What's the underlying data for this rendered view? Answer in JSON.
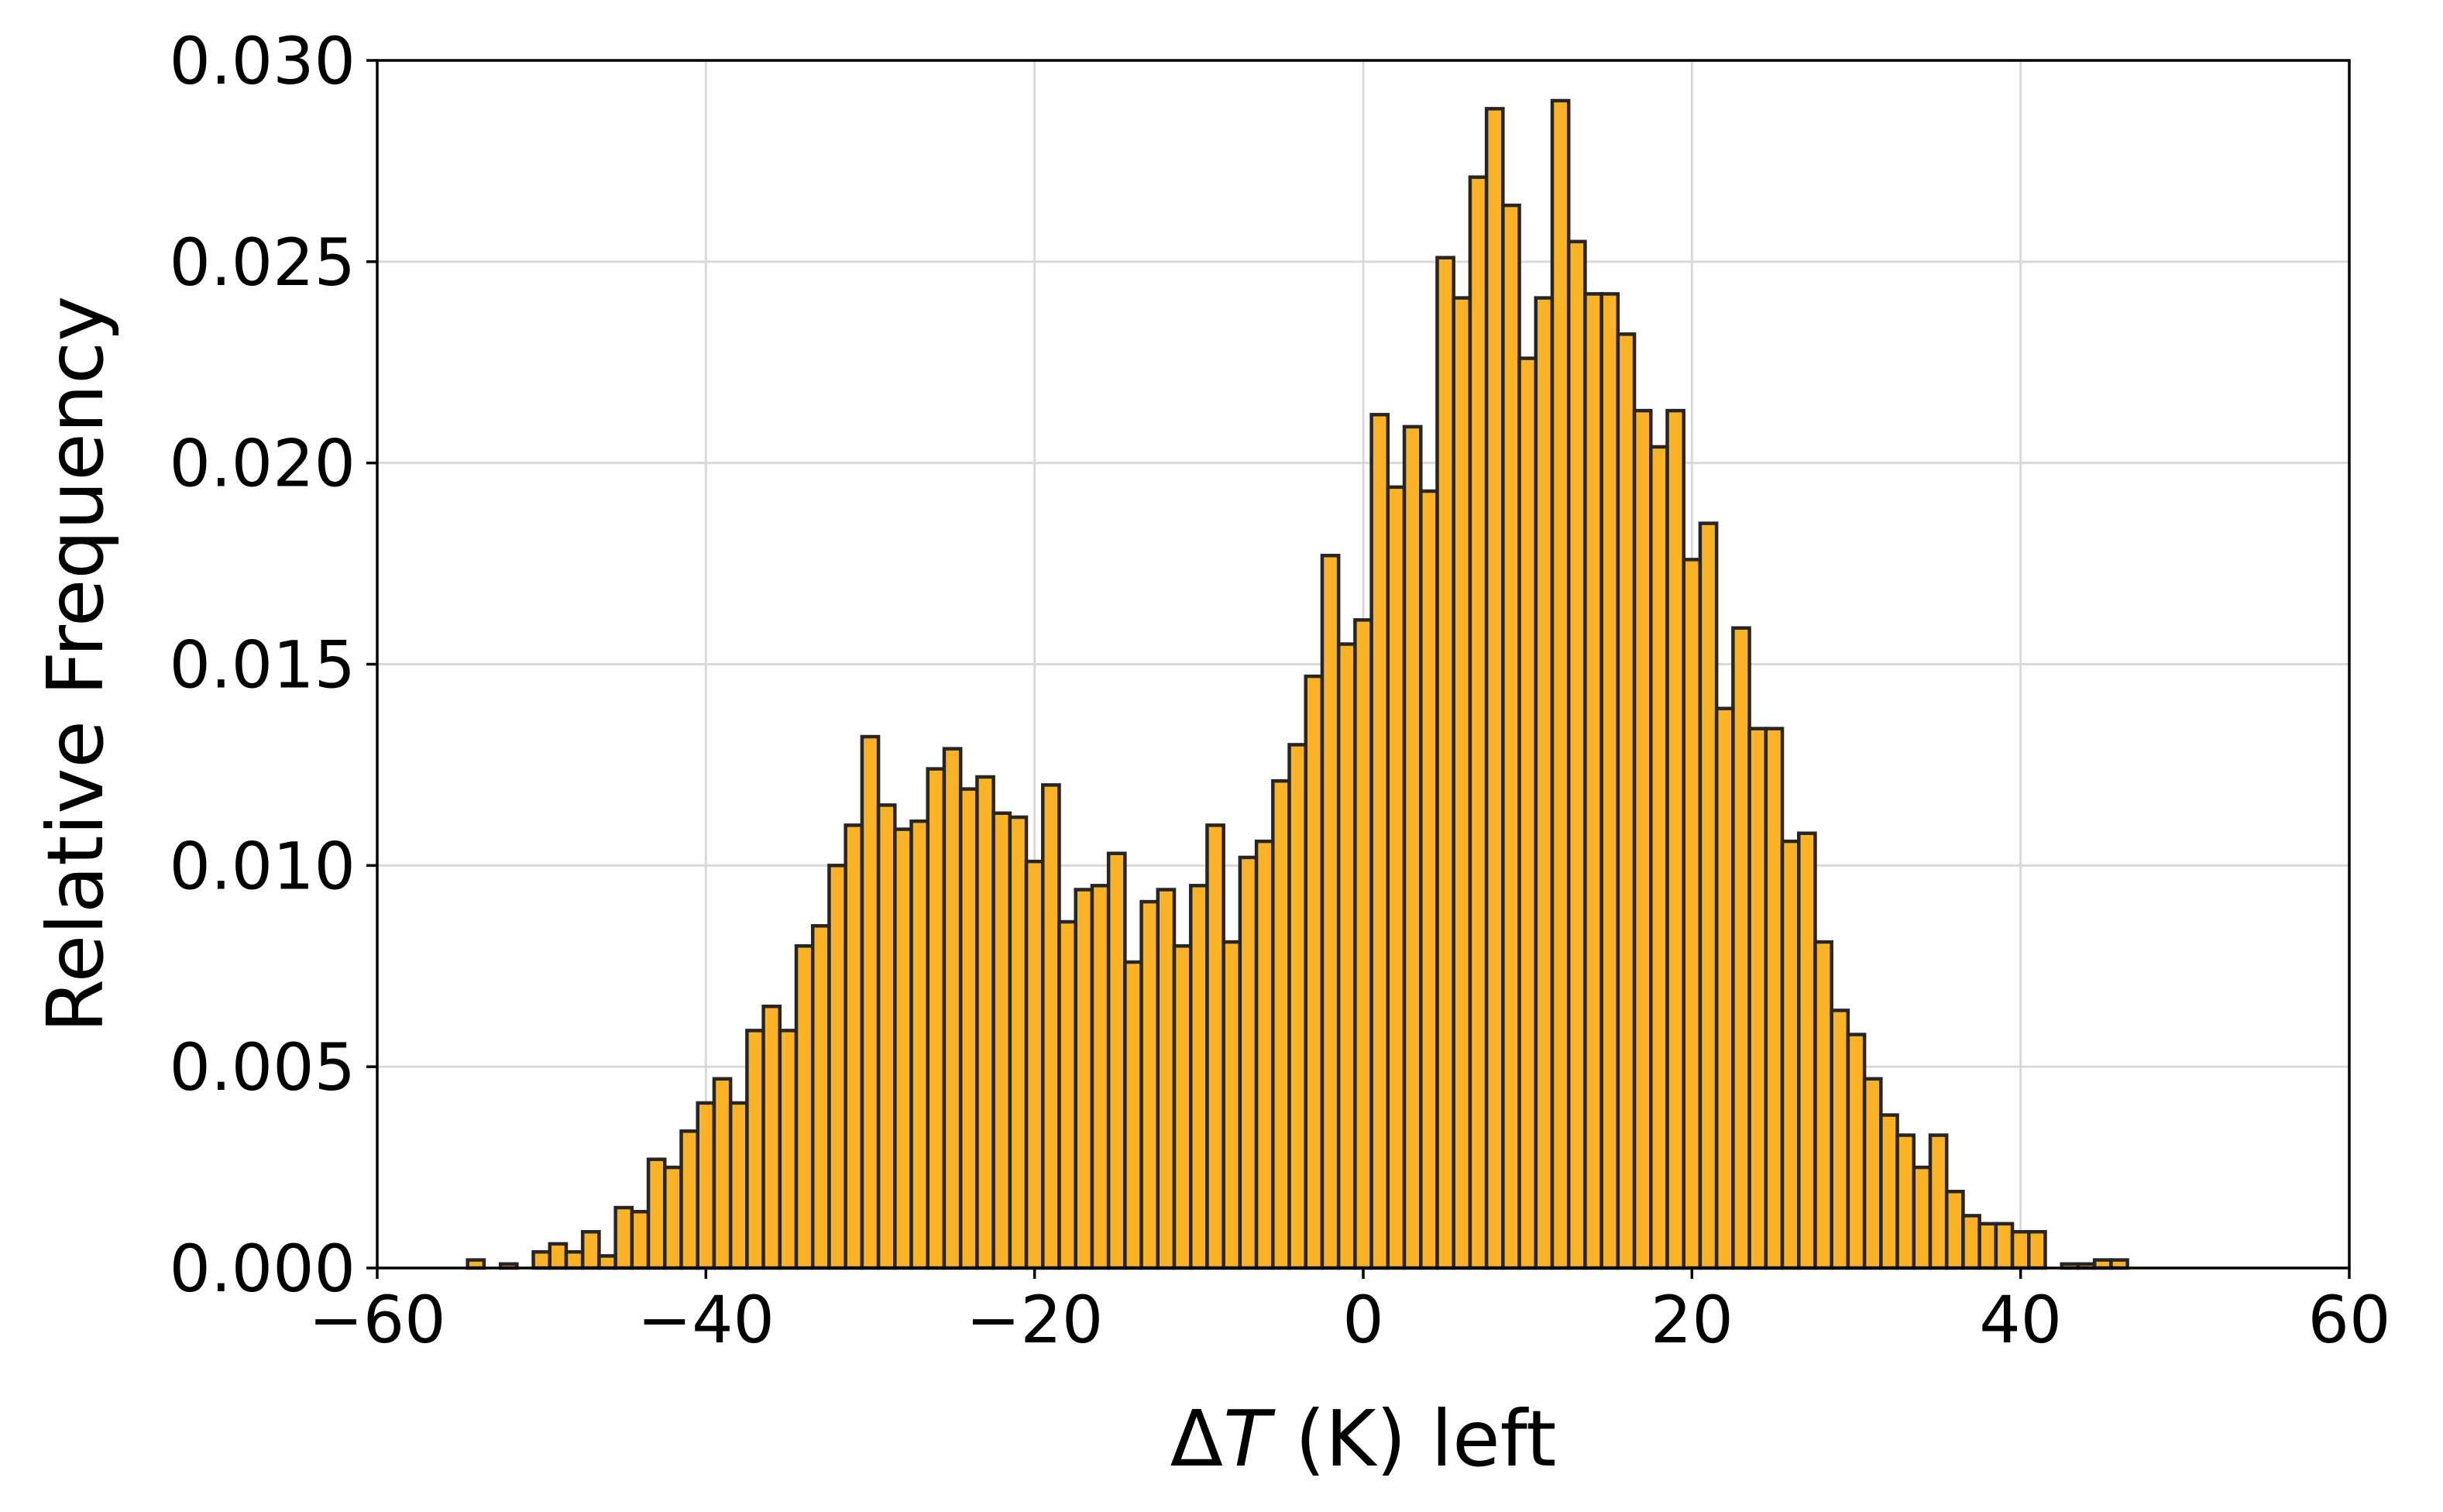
{
  "chart_data": {
    "type": "bar",
    "xlabel": "ΔT (K) left",
    "xlabel_parts": {
      "delta": "Δ",
      "var": "T",
      "rest": " (K) left"
    },
    "ylabel": "Relative Frequency",
    "xlim": [
      -60,
      60
    ],
    "ylim": [
      0,
      0.03
    ],
    "xticks": [
      -60,
      -40,
      -20,
      0,
      20,
      40,
      60
    ],
    "xtick_labels": [
      "−60",
      "−40",
      "−20",
      "0",
      "20",
      "40",
      "60"
    ],
    "yticks": [
      0,
      0.005,
      0.01,
      0.015,
      0.02,
      0.025,
      0.03
    ],
    "ytick_labels": [
      "0.000",
      "0.005",
      "0.010",
      "0.015",
      "0.020",
      "0.025",
      "0.030"
    ],
    "grid": true,
    "bar_color": "#fbb225",
    "edge_color": "#262626",
    "bin_width": 1.0,
    "bin_start": -55.5,
    "values": [
      0.0,
      0.0002,
      0.0,
      0.0001,
      0.0,
      0.0004,
      0.0006,
      0.0004,
      0.0009,
      0.0003,
      0.0015,
      0.0014,
      0.0027,
      0.0025,
      0.0034,
      0.0041,
      0.0047,
      0.0041,
      0.0059,
      0.0065,
      0.0059,
      0.008,
      0.0085,
      0.01,
      0.011,
      0.0132,
      0.0115,
      0.0109,
      0.0111,
      0.0124,
      0.0129,
      0.0119,
      0.0122,
      0.0113,
      0.0112,
      0.0101,
      0.012,
      0.0086,
      0.0094,
      0.0095,
      0.0103,
      0.0076,
      0.0091,
      0.0094,
      0.008,
      0.0095,
      0.011,
      0.0081,
      0.0102,
      0.0106,
      0.0121,
      0.013,
      0.0147,
      0.0177,
      0.0155,
      0.0161,
      0.0212,
      0.0194,
      0.0209,
      0.0193,
      0.0251,
      0.0241,
      0.0271,
      0.0288,
      0.0264,
      0.0226,
      0.0241,
      0.029,
      0.0255,
      0.0242,
      0.0242,
      0.0232,
      0.0213,
      0.0204,
      0.0213,
      0.0176,
      0.0185,
      0.0139,
      0.0159,
      0.0134,
      0.0134,
      0.0106,
      0.0108,
      0.0081,
      0.0064,
      0.0058,
      0.0047,
      0.0038,
      0.0033,
      0.0025,
      0.0033,
      0.0019,
      0.0013,
      0.0011,
      0.0011,
      0.0009,
      0.0009,
      0.0,
      0.0001,
      0.0001,
      0.0002,
      0.0002
    ]
  }
}
